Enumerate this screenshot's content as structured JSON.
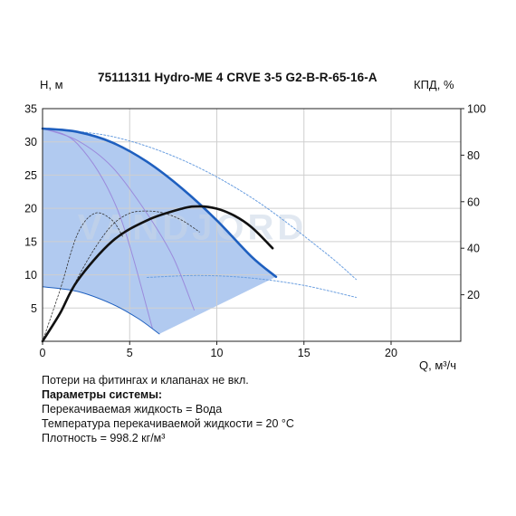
{
  "chart_data": {
    "type": "line",
    "title": "75111311 Hydro-ME 4 CRVE 3-5 G2-B-R-65-16-A",
    "ylabel": "H, м",
    "y2label": "КПД, %",
    "xlabel": "Q, м³/ч",
    "xlim": [
      0,
      24
    ],
    "ylim": [
      0,
      35
    ],
    "y2lim": [
      0,
      100
    ],
    "x_ticks": [
      0,
      5,
      10,
      15,
      20
    ],
    "y_ticks": [
      5,
      10,
      15,
      20,
      25,
      30,
      35
    ],
    "y2_ticks": [
      20,
      40,
      60,
      80,
      100
    ],
    "grid": true,
    "watermark": "VANDJORD",
    "colors": {
      "area": "#a9c4ee",
      "max_head": "#1e5fbf",
      "efficiency": "#111111",
      "reduced_curves": "#9b8bdc",
      "extended": "#6b9fe0",
      "grid": "#cfcfcf"
    },
    "series": [
      {
        "role": "max-head-curve",
        "x": [
          0,
          2,
          4,
          6,
          8,
          10,
          12,
          13.4
        ],
        "y": [
          32,
          31.5,
          29.9,
          27.0,
          23.0,
          18.2,
          12.7,
          9.7
        ]
      },
      {
        "role": "efficiency-curve",
        "axis": "y2",
        "x": [
          0,
          1,
          2,
          4,
          6,
          8,
          9,
          10,
          11,
          12,
          13.2
        ],
        "y": [
          0,
          12,
          26,
          43,
          52,
          57,
          58,
          57,
          54,
          49,
          40
        ]
      },
      {
        "role": "minimum-speed-curve",
        "x": [
          0,
          2,
          4,
          5.5,
          6.7
        ],
        "y": [
          8.2,
          7.5,
          5.6,
          3.4,
          1.1
        ]
      },
      {
        "role": "reduced-speed-curve-1",
        "x": [
          0,
          2,
          4.3,
          6.3
        ],
        "y": [
          32,
          29.7,
          19.8,
          2.0
        ]
      },
      {
        "role": "reduced-speed-curve-2",
        "x": [
          0,
          2,
          4,
          6,
          7.5,
          8.7
        ],
        "y": [
          32,
          30.2,
          26.2,
          19.2,
          12.6,
          4.7
        ]
      },
      {
        "role": "extended-head-curve",
        "x": [
          0,
          4,
          8,
          12,
          16,
          18
        ],
        "y": [
          32,
          30.8,
          27.3,
          21.6,
          13.8,
          9.3
        ]
      },
      {
        "role": "extended-low-curve",
        "x": [
          6,
          9,
          12,
          15,
          18
        ],
        "y": [
          9.6,
          9.9,
          9.5,
          8.4,
          6.6
        ]
      },
      {
        "role": "efficiency-reduced-1",
        "axis": "y2",
        "x": [
          0,
          1,
          2,
          3,
          4,
          4.6
        ],
        "y": [
          0,
          22,
          46,
          55,
          52,
          45
        ]
      },
      {
        "role": "efficiency-reduced-2",
        "axis": "y2",
        "x": [
          0,
          1,
          2,
          3,
          4,
          5,
          6,
          7,
          8,
          9
        ],
        "y": [
          0,
          12,
          27,
          40,
          50,
          55,
          56,
          55,
          52,
          47
        ]
      }
    ]
  },
  "notes": {
    "line1": "Потери на фитингах и клапанах не вкл.",
    "heading": "Параметры системы:",
    "line2": "Перекачиваемая жидкость = Вода",
    "line3": "Температура перекачиваемой жидкости = 20 °C",
    "line4": "Плотность = 998.2 кг/м³"
  }
}
